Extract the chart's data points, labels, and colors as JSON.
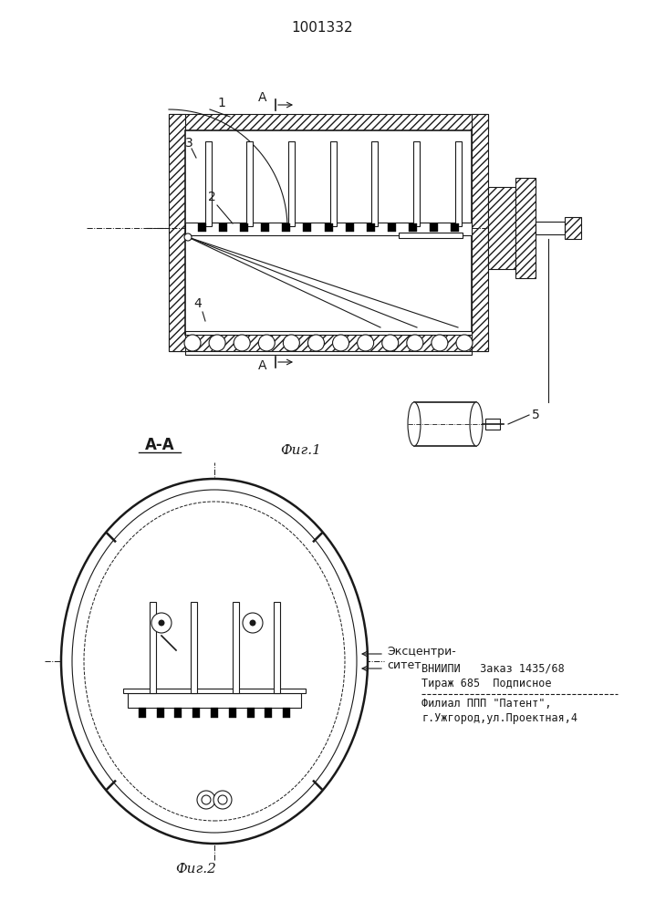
{
  "patent_number": "1001332",
  "fig1_caption": "Фиг.1",
  "fig2_caption": "Фиг.2",
  "section_label": "А-А",
  "fig1_section_top": "А",
  "fig1_section_bot": "А",
  "label1": "1",
  "label2": "2",
  "label3": "3",
  "label4": "4",
  "label5": "5",
  "eccentricity_label": "Эксцентри-\nситет",
  "vniipи_line1": "ВНИИПИ   Заказ 1435/68",
  "vniipи_line2": "Тираж 685  Подписное",
  "filial_line1": "Филиал ППП \"Патент\",",
  "filial_line2": "г.Ужгород,ул.Проектная,4",
  "bg_color": "#f5f5f0",
  "line_color": "#1a1a1a",
  "hatch_color": "#1a1a1a"
}
